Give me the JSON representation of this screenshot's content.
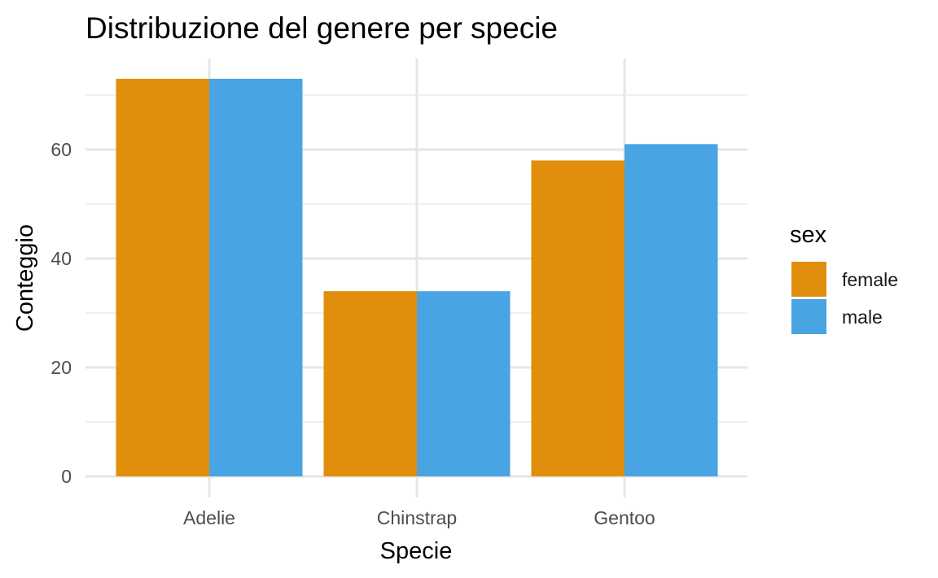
{
  "chart_data": {
    "type": "bar",
    "title": "Distribuzione del genere per specie",
    "xlabel": "Specie",
    "ylabel": "Conteggio",
    "categories": [
      "Adelie",
      "Chinstrap",
      "Gentoo"
    ],
    "series": [
      {
        "name": "female",
        "values": [
          73,
          34,
          58
        ],
        "color": "#E08E0B"
      },
      {
        "name": "male",
        "values": [
          73,
          34,
          61
        ],
        "color": "#48A4E2"
      }
    ],
    "ylim": [
      0,
      73
    ],
    "yticks": [
      0,
      20,
      40,
      60
    ],
    "ytick_labels": [
      "0",
      "20",
      "40",
      "60"
    ],
    "grid": true,
    "legend": {
      "title": "sex",
      "position": "right"
    }
  }
}
